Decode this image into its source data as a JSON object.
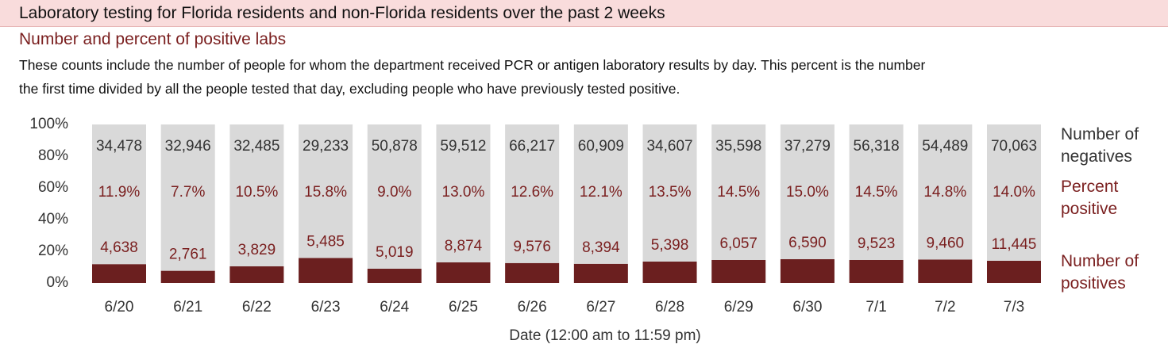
{
  "chart_data": {
    "type": "stacked_bar_100",
    "title": "Laboratory testing for Florida residents and non-Florida residents over the past 2 weeks",
    "subtitle": "Number and percent of positive labs",
    "description": [
      "These counts include the number of people for whom the department received PCR or antigen laboratory results by day. This percent is the number",
      "the first time divided by all the people tested that day, excluding people who have previously tested positive."
    ],
    "x_label": "Date (12:00 am to 11:59 pm)",
    "percent_label": "Percent positive",
    "categories": [
      "6/20",
      "6/21",
      "6/22",
      "6/23",
      "6/24",
      "6/25",
      "6/26",
      "6/27",
      "6/28",
      "6/29",
      "6/30",
      "7/1",
      "7/2",
      "7/3"
    ],
    "series": [
      {
        "name": "Number of positives",
        "color": "#6b1f1f",
        "values": [
          11.9,
          7.7,
          10.5,
          15.8,
          9.0,
          13.0,
          12.6,
          12.1,
          13.5,
          14.5,
          15.0,
          14.5,
          14.8,
          14.0
        ],
        "value_labels": [
          "11.9%",
          "7.7%",
          "10.5%",
          "15.8%",
          "9.0%",
          "13.0%",
          "12.6%",
          "12.1%",
          "13.5%",
          "14.5%",
          "15.0%",
          "14.5%",
          "14.8%",
          "14.0%"
        ],
        "count_labels": [
          "4,638",
          "2,761",
          "3,829",
          "5,485",
          "5,019",
          "8,874",
          "9,576",
          "8,394",
          "5,398",
          "6,057",
          "6,590",
          "9,523",
          "9,460",
          "11,445"
        ]
      },
      {
        "name": "Number of negatives",
        "color": "#d9d9d9",
        "values": [
          88.1,
          92.3,
          89.5,
          84.2,
          91.0,
          87.0,
          87.4,
          87.9,
          86.5,
          85.5,
          85.0,
          85.5,
          85.2,
          86.0
        ],
        "count_labels": [
          "34,478",
          "32,946",
          "32,485",
          "29,233",
          "50,878",
          "59,512",
          "66,217",
          "60,909",
          "34,607",
          "35,598",
          "37,279",
          "56,318",
          "54,489",
          "70,063"
        ]
      }
    ],
    "ylim": [
      0,
      100
    ],
    "yticks": [
      {
        "value": 0,
        "label": "0%"
      },
      {
        "value": 20,
        "label": "20%"
      },
      {
        "value": 40,
        "label": "40%"
      },
      {
        "value": 60,
        "label": "60%"
      },
      {
        "value": 80,
        "label": "80%"
      },
      {
        "value": 100,
        "label": "100%"
      }
    ]
  }
}
